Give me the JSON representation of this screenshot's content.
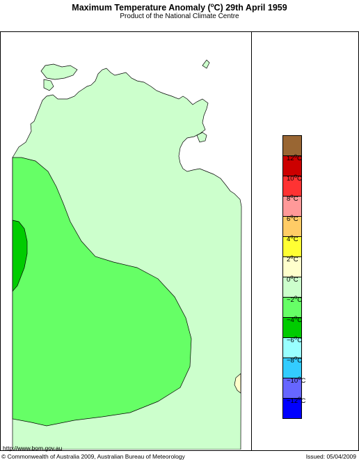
{
  "header": {
    "title_main": "Maximum Temperature Anomaly (",
    "title_degree": "o",
    "title_rest": "C)  29th April 1959",
    "subtitle": "Product of the National Climate Centre"
  },
  "legend": {
    "swatches": [
      {
        "color": "#996633",
        "key": "above 12"
      },
      {
        "color": "#cc0000",
        "key": "10 to 12"
      },
      {
        "color": "#ff3333",
        "key": "8 to 10"
      },
      {
        "color": "#ff9999",
        "key": "6 to 8"
      },
      {
        "color": "#ffcc66",
        "key": "4 to 6"
      },
      {
        "color": "#ffff33",
        "key": "2 to 4"
      },
      {
        "color": "#ffffcc",
        "key": "0 to 2"
      },
      {
        "color": "#ccffcc",
        "key": "-2 to 0"
      },
      {
        "color": "#66ff66",
        "key": "-4 to -2"
      },
      {
        "color": "#00cc00",
        "key": "-6 to -4"
      },
      {
        "color": "#99ffff",
        "key": "-8 to -6"
      },
      {
        "color": "#33ccff",
        "key": "-10 to -8"
      },
      {
        "color": "#6666ff",
        "key": "-12 to -10"
      },
      {
        "color": "#0000ff",
        "key": "below -12"
      }
    ],
    "ticks": [
      {
        "num": "12",
        "unit": "C"
      },
      {
        "num": "10",
        "unit": "C"
      },
      {
        "num": "8",
        "unit": "C"
      },
      {
        "num": "6",
        "unit": "C"
      },
      {
        "num": "4",
        "unit": "C"
      },
      {
        "num": "2",
        "unit": "C"
      },
      {
        "num": "0",
        "unit": "C"
      },
      {
        "num": "−2",
        "unit": "C"
      },
      {
        "num": "−4",
        "unit": "C"
      },
      {
        "num": "−6",
        "unit": "C"
      },
      {
        "num": "−8",
        "unit": "C"
      },
      {
        "num": "−10",
        "unit": "C"
      },
      {
        "num": "−12",
        "unit": "C"
      }
    ],
    "degree_mark": "o"
  },
  "map": {
    "colors": {
      "sea": "#ffffff",
      "light_green": "#ccffcc",
      "mid_green": "#66ff66",
      "dark_green": "#00cc00",
      "pale_yellow": "#ffffcc",
      "outline": "#000000"
    }
  },
  "footer": {
    "url": "http://www.bom.gov.au",
    "copyright": "© Commonwealth of Australia 2009, Australian Bureau of Meteorology",
    "issued": "Issued: 05/04/2009"
  }
}
